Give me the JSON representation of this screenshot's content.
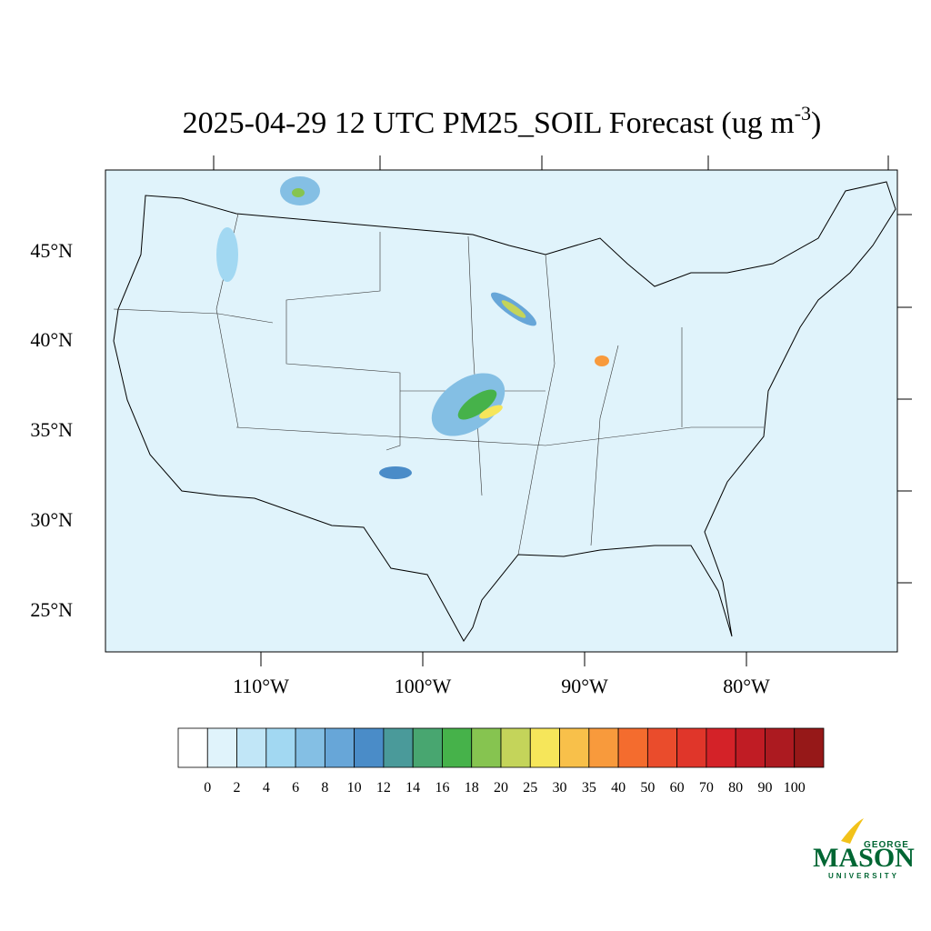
{
  "title": "2025-04-29 12 UTC PM25_SOIL Forecast (ug m",
  "title_superscript": "-3",
  "title_end": ")",
  "map": {
    "lat_labels": [
      "45°N",
      "40°N",
      "35°N",
      "30°N",
      "25°N"
    ],
    "lon_labels": [
      "110°W",
      "100°W",
      "90°W",
      "80°W"
    ]
  },
  "colorbar": {
    "levels": [
      0,
      2,
      4,
      6,
      8,
      10,
      12,
      14,
      16,
      18,
      20,
      25,
      30,
      35,
      40,
      50,
      60,
      70,
      80,
      90,
      100
    ],
    "colors": [
      "#ffffff",
      "#e0f3fb",
      "#c1e6f7",
      "#a2d8f2",
      "#84bfe4",
      "#67a6d8",
      "#4a8cc8",
      "#4a9a9a",
      "#48a670",
      "#46b24a",
      "#86c450",
      "#c4d45a",
      "#f6e65a",
      "#f8c04a",
      "#f89a3c",
      "#f46c2e",
      "#ea4c2c",
      "#e0362a",
      "#d42228",
      "#c01c24",
      "#ac1a20",
      "#961818"
    ]
  },
  "logo": {
    "top": "GEORGE",
    "main": "MASON",
    "bottom": "UNIVERSITY"
  }
}
